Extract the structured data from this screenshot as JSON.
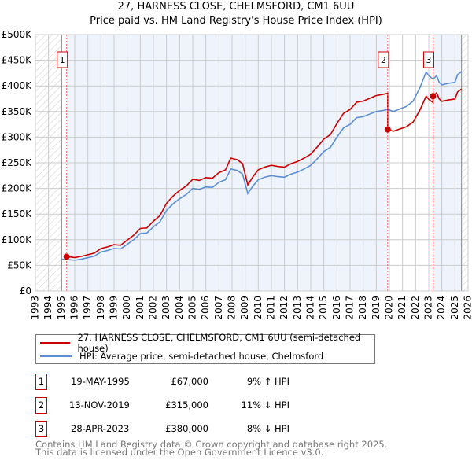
{
  "title": "27, HARNESS CLOSE, CHELMSFORD, CM1 6UU",
  "subtitle": "Price paid vs. HM Land Registry's House Price Index (HPI)",
  "chart_data": {
    "type": "line",
    "xlim": [
      1993,
      2026
    ],
    "ylim": [
      0,
      500000
    ],
    "yticks": [
      0,
      50000,
      100000,
      150000,
      200000,
      250000,
      300000,
      350000,
      400000,
      450000,
      500000
    ],
    "ytick_labels": [
      "£0",
      "£50K",
      "£100K",
      "£150K",
      "£200K",
      "£250K",
      "£300K",
      "£350K",
      "£400K",
      "£450K",
      "£500K"
    ],
    "xticks": [
      1993,
      1994,
      1995,
      1996,
      1997,
      1998,
      1999,
      2000,
      2001,
      2002,
      2003,
      2004,
      2005,
      2006,
      2007,
      2008,
      2009,
      2010,
      2011,
      2012,
      2013,
      2014,
      2015,
      2016,
      2017,
      2018,
      2019,
      2020,
      2021,
      2022,
      2023,
      2024,
      2025,
      2026
    ],
    "data_range": [
      1995.0,
      2025.5
    ],
    "grid": true,
    "colors": {
      "property": "#cc0000",
      "hpi": "#5b8fd4",
      "band": "#eef3fc"
    },
    "series": [
      {
        "name": "HPI: Average price, semi-detached house, Chelmsford",
        "x": [
          1995.0,
          1995.4,
          1996.0,
          1996.5,
          1997.0,
          1997.5,
          1998.0,
          1998.5,
          1999.0,
          1999.5,
          2000.0,
          2000.5,
          2001.0,
          2001.5,
          2002.0,
          2002.5,
          2003.0,
          2003.5,
          2004.0,
          2004.5,
          2005.0,
          2005.5,
          2006.0,
          2006.5,
          2007.0,
          2007.5,
          2007.9,
          2008.4,
          2008.8,
          2009.2,
          2009.6,
          2010.0,
          2010.5,
          2011.0,
          2011.5,
          2012.0,
          2012.5,
          2013.0,
          2013.5,
          2014.0,
          2014.5,
          2015.0,
          2015.5,
          2016.0,
          2016.5,
          2017.0,
          2017.5,
          2018.0,
          2018.5,
          2019.0,
          2019.5,
          2019.87,
          2020.3,
          2020.8,
          2021.3,
          2021.8,
          2022.3,
          2022.8,
          2023.0,
          2023.33,
          2023.6,
          2023.8,
          2024.0,
          2024.5,
          2025.0,
          2025.2,
          2025.5
        ],
        "values": [
          62000,
          61500,
          60000,
          62000,
          65000,
          68000,
          76000,
          79000,
          83000,
          82000,
          91000,
          100000,
          112000,
          113000,
          125000,
          135000,
          157000,
          170000,
          180000,
          188000,
          200000,
          198000,
          203000,
          202000,
          212000,
          217000,
          238000,
          235000,
          228000,
          190000,
          205000,
          217000,
          222000,
          225000,
          223000,
          222000,
          228000,
          232000,
          238000,
          245000,
          258000,
          272000,
          280000,
          300000,
          318000,
          325000,
          338000,
          340000,
          345000,
          350000,
          352000,
          354000,
          350000,
          355000,
          360000,
          370000,
          395000,
          427000,
          420000,
          413000,
          420000,
          407000,
          402000,
          405000,
          407000,
          422000,
          428000
        ]
      },
      {
        "name": "27, HARNESS CLOSE, CHELMSFORD, CM1 6UU (semi-detached house)",
        "derived_from_hpi_and_sales": true
      }
    ]
  },
  "legend": {
    "property": "27, HARNESS CLOSE, CHELMSFORD, CM1 6UU (semi-detached house)",
    "hpi": "HPI: Average price, semi-detached house, Chelmsford"
  },
  "sales": [
    {
      "num": "1",
      "date": "19-MAY-1995",
      "year": 1995.38,
      "price": "£67,000",
      "value": 67000,
      "hpi_diff": "9% ↑ HPI"
    },
    {
      "num": "2",
      "date": "13-NOV-2019",
      "year": 2019.87,
      "price": "£315,000",
      "value": 315000,
      "hpi_diff": "11% ↓ HPI"
    },
    {
      "num": "3",
      "date": "28-APR-2023",
      "year": 2023.33,
      "price": "£380,000",
      "value": 380000,
      "hpi_diff": "8% ↓ HPI"
    }
  ],
  "footer": {
    "line1": "Contains HM Land Registry data © Crown copyright and database right 2025.",
    "line2": "This data is licensed under the Open Government Licence v3.0."
  }
}
